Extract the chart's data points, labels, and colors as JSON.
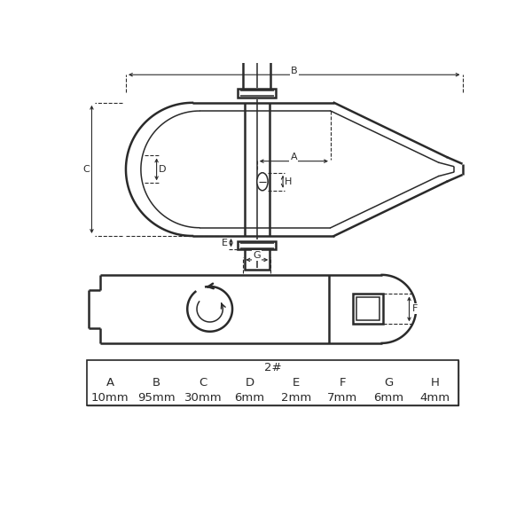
{
  "bg_color": "#ffffff",
  "line_color": "#2a2a2a",
  "dim_color": "#2a2a2a",
  "table_header_color": "#b8b8b8",
  "title_2hash": "2#",
  "col_labels": [
    "A",
    "B",
    "C",
    "D",
    "E",
    "F",
    "G",
    "H"
  ],
  "col_values": [
    "10mm",
    "95mm",
    "30mm",
    "6mm",
    "2mm",
    "7mm",
    "6mm",
    "4mm"
  ]
}
